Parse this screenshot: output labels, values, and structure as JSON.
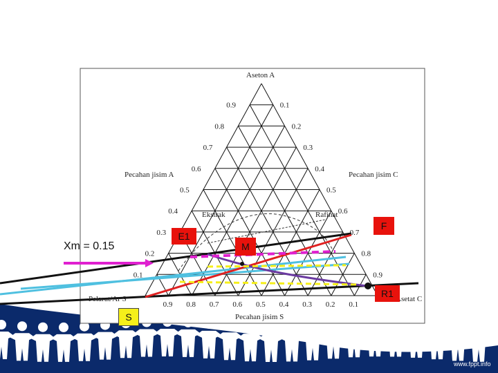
{
  "diagram": {
    "apex_top": "Aseton A",
    "left_side_label": "Pecahan jisim A",
    "right_side_label": "Pecahan jisim C",
    "bottom_label": "Pecahan jisim S",
    "bottom_left_corner": "Pelarut/Ar S",
    "bottom_right_corner": "Asetat C",
    "extract_label": "Ekstrak",
    "raffinate_label": "Rafinat",
    "left_ticks": [
      "0.9",
      "0.8",
      "0.7",
      "0.6",
      "0.5",
      "0.4",
      "0.3",
      "0.2",
      "0.1"
    ],
    "right_ticks": [
      "0.1",
      "0.2",
      "0.3",
      "0.4",
      "0.5",
      "0.6",
      "0.7",
      "0.8",
      "0.9"
    ],
    "bottom_ticks": [
      "0.9",
      "0.8",
      "0.7",
      "0.6",
      "0.5",
      "0.4",
      "0.3",
      "0.2",
      "0.1"
    ]
  },
  "annotations": {
    "e1": "E1",
    "m": "M",
    "f": "F",
    "r1": "R1",
    "s": "S",
    "xm": "Xm = 0.15"
  },
  "footer": {
    "brand": "www.fppt.info"
  },
  "colors": {
    "red_marker": "#e8120c",
    "yellow_marker": "#f5ef1a",
    "navy_band": "#0b2a6b",
    "cyan_line": "#4fc0e0",
    "magenta_line": "#e020d0",
    "purple_line": "#6a3aa0",
    "red_line": "#e02020"
  }
}
